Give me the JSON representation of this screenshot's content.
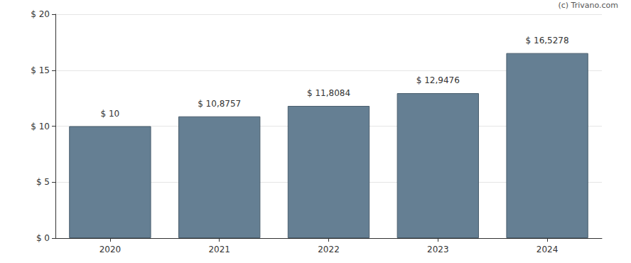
{
  "chart_data": {
    "type": "bar",
    "annotations": [
      "(c) Trivano.com"
    ],
    "categories": [
      "2020",
      "2021",
      "2022",
      "2023",
      "2024"
    ],
    "values": [
      10,
      10.8757,
      11.8084,
      12.9476,
      16.5278
    ],
    "value_labels": [
      "$ 10",
      "$ 10,8757",
      "$ 11,8084",
      "$ 12,9476",
      "$ 16,5278"
    ],
    "data_labels": true,
    "color": "#657f93",
    "ylim": [
      0,
      20
    ],
    "yticks": [
      {
        "value": 0,
        "label": "$ 0"
      },
      {
        "value": 5,
        "label": "$ 5"
      },
      {
        "value": 10,
        "label": "$ 10"
      },
      {
        "value": 15,
        "label": "$ 15"
      },
      {
        "value": 20,
        "label": "$ 20"
      }
    ],
    "grid": true
  }
}
